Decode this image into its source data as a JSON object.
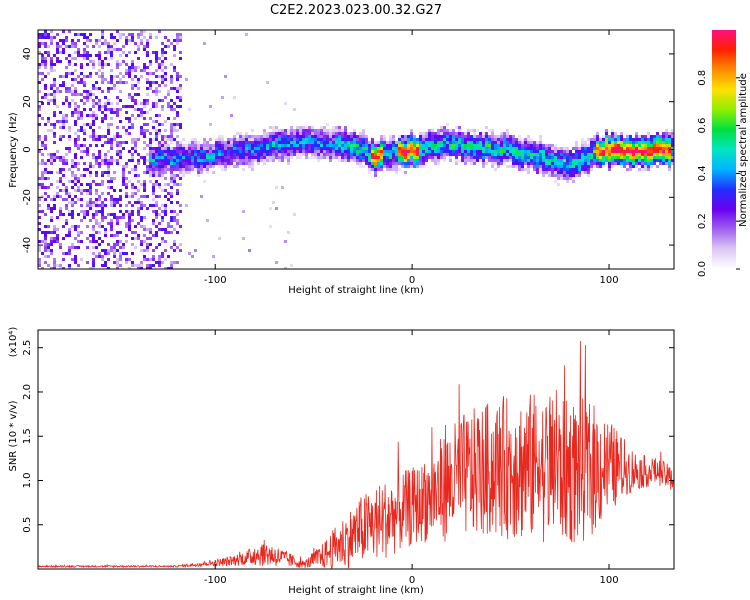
{
  "title": "C2E2.2023.023.00.32.G27",
  "chart_data": [
    {
      "type": "heatmap",
      "xlabel": "Height of straight line (km)",
      "ylabel": "Frequency (Hz)",
      "xlim": [
        -190,
        133
      ],
      "ylim": [
        -50,
        50
      ],
      "x_ticks": [
        -100,
        0,
        100
      ],
      "y_ticks": [
        -40,
        -20,
        0,
        20,
        40
      ],
      "colorbar": {
        "label": "Normalized spectral amplitude",
        "range": [
          0,
          1
        ],
        "ticks": [
          "0.0",
          "0.2",
          "0.4",
          "0.6",
          "0.8"
        ],
        "colors": [
          "#ffffff",
          "#dcc8f5",
          "#a060f0",
          "#6a00f0",
          "#2030ff",
          "#00b4ff",
          "#00e6c0",
          "#00e040",
          "#90ee00",
          "#ffe000",
          "#ff8c00",
          "#ff2000",
          "#ff1080"
        ]
      },
      "ridge": {
        "description_points_x": [
          -130,
          -110,
          -90,
          -70,
          -55,
          -40,
          -30,
          -20,
          -10,
          0,
          10,
          20,
          30,
          40,
          50,
          60,
          70,
          80,
          90,
          95,
          100,
          110,
          120,
          133
        ],
        "description_points_y": [
          -3,
          -3,
          0,
          2,
          4,
          3,
          2,
          -2,
          -1,
          0,
          2,
          3,
          2,
          1,
          0,
          -2,
          -4,
          -6,
          -2,
          0,
          0,
          0,
          0,
          1
        ]
      }
    },
    {
      "type": "line",
      "xlabel": "Height of straight line (km)",
      "ylabel": "SNR (10 * v/v)",
      "y_multiplier": "(x10⁴)",
      "xlim": [
        -190,
        133
      ],
      "ylim": [
        0,
        2.7
      ],
      "x_ticks": [
        -100,
        0,
        100
      ],
      "y_ticks": [
        "0.5",
        "1.0",
        "1.5",
        "2.0",
        "2.5"
      ],
      "color": "#e8281e",
      "envelope": {
        "x": [
          -190,
          -150,
          -120,
          -105,
          -95,
          -85,
          -75,
          -65,
          -55,
          -45,
          -35,
          -25,
          -15,
          -5,
          5,
          15,
          25,
          35,
          45,
          55,
          65,
          75,
          85,
          95,
          105,
          115,
          125,
          133
        ],
        "y_mean": [
          0.03,
          0.03,
          0.03,
          0.06,
          0.08,
          0.12,
          0.18,
          0.12,
          0.05,
          0.15,
          0.3,
          0.45,
          0.55,
          0.65,
          0.75,
          0.9,
          1.05,
          1.1,
          1.15,
          1.15,
          1.15,
          1.1,
          1.1,
          1.15,
          1.15,
          1.1,
          1.1,
          1.0
        ],
        "y_spread": [
          0.01,
          0.01,
          0.01,
          0.03,
          0.05,
          0.08,
          0.15,
          0.1,
          0.04,
          0.15,
          0.3,
          0.4,
          0.45,
          0.45,
          0.45,
          0.6,
          0.7,
          0.75,
          0.8,
          0.85,
          0.85,
          0.8,
          0.85,
          0.7,
          0.4,
          0.2,
          0.15,
          0.15
        ]
      }
    }
  ]
}
